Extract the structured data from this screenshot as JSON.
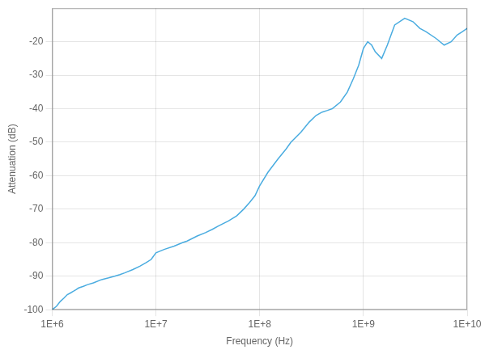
{
  "chart_data": {
    "type": "line",
    "xlabel": "Frequency (Hz)",
    "ylabel": "Attenuation (dB)",
    "log": "x",
    "color": "#4AACE0",
    "grid": true,
    "xlim": [
      1000000,
      10000000000
    ],
    "ylim": [
      -100,
      -10
    ],
    "xticks": [
      {
        "value": 1000000,
        "label": "1E+6"
      },
      {
        "value": 10000000,
        "label": "1E+7"
      },
      {
        "value": 100000000,
        "label": "1E+8"
      },
      {
        "value": 1000000000,
        "label": "1E+9"
      },
      {
        "value": 10000000000,
        "label": "1E+10"
      }
    ],
    "yticks": [
      -100,
      -90,
      -80,
      -70,
      -60,
      -50,
      -40,
      -30,
      -20
    ],
    "x": [
      1000000,
      1100000,
      1200000,
      1300000,
      1400000,
      1500000,
      1600000,
      1700000,
      1800000,
      2000000,
      2200000,
      2500000,
      3000000,
      3500000,
      4000000,
      4500000,
      5000000,
      6000000,
      7000000,
      8000000,
      9000000,
      10000000,
      12000000,
      15000000,
      18000000,
      20000000,
      25000000,
      30000000,
      35000000,
      40000000,
      50000000,
      60000000,
      70000000,
      80000000,
      90000000,
      100000000,
      120000000,
      150000000,
      180000000,
      200000000,
      250000000,
      300000000,
      350000000,
      400000000,
      450000000,
      500000000,
      600000000,
      700000000,
      800000000,
      900000000,
      1000000000,
      1100000000,
      1200000000,
      1300000000,
      1500000000,
      1700000000,
      2000000000,
      2500000000,
      3000000000,
      3500000000,
      4000000000,
      5000000000,
      6000000000,
      7000000000,
      8000000000,
      9000000000,
      10000000000
    ],
    "values": [
      -100,
      -99,
      -97.5,
      -96.5,
      -95.5,
      -95,
      -94.5,
      -94,
      -93.5,
      -93,
      -92.5,
      -92,
      -91,
      -90.5,
      -90,
      -89.5,
      -89,
      -88,
      -87,
      -86,
      -85,
      -83,
      -82,
      -81,
      -80,
      -79.5,
      -78,
      -77,
      -76,
      -75,
      -73.5,
      -72,
      -70,
      -68,
      -66,
      -63,
      -59,
      -55,
      -52,
      -50,
      -47,
      -44,
      -42,
      -41,
      -40.5,
      -40,
      -38,
      -35,
      -31,
      -27,
      -22,
      -20,
      -21,
      -23,
      -25,
      -21,
      -15,
      -13,
      -14,
      -16,
      -17,
      -19,
      -21,
      -20,
      -18,
      -17,
      -16
    ]
  }
}
